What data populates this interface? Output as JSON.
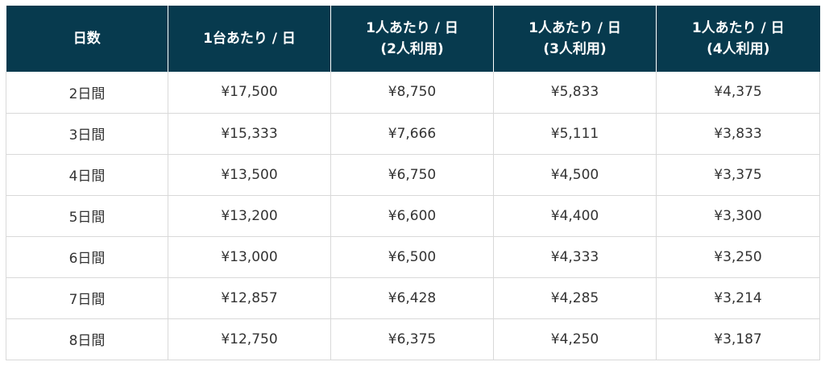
{
  "table": {
    "headers": [
      {
        "line1": "日数",
        "line2": ""
      },
      {
        "line1": "1台あたり / 日",
        "line2": ""
      },
      {
        "line1": "1人あたり / 日",
        "line2": "(2人利用)"
      },
      {
        "line1": "1人あたり / 日",
        "line2": "(3人利用)"
      },
      {
        "line1": "1人あたり / 日",
        "line2": "(4人利用)"
      }
    ],
    "rows": [
      [
        "2日間",
        "¥17,500",
        "¥8,750",
        "¥5,833",
        "¥4,375"
      ],
      [
        "3日間",
        "¥15,333",
        "¥7,666",
        "¥5,111",
        "¥3,833"
      ],
      [
        "4日間",
        "¥13,500",
        "¥6,750",
        "¥4,500",
        "¥3,375"
      ],
      [
        "5日間",
        "¥13,200",
        "¥6,600",
        "¥4,400",
        "¥3,300"
      ],
      [
        "6日間",
        "¥13,000",
        "¥6,500",
        "¥4,333",
        "¥3,250"
      ],
      [
        "7日間",
        "¥12,857",
        "¥6,428",
        "¥4,285",
        "¥3,214"
      ],
      [
        "8日間",
        "¥12,750",
        "¥6,375",
        "¥4,250",
        "¥3,187"
      ]
    ]
  },
  "colors": {
    "header_bg": "#073a4e",
    "header_text": "#ffffff",
    "border": "#d9d9d9",
    "body_text": "#333333"
  }
}
